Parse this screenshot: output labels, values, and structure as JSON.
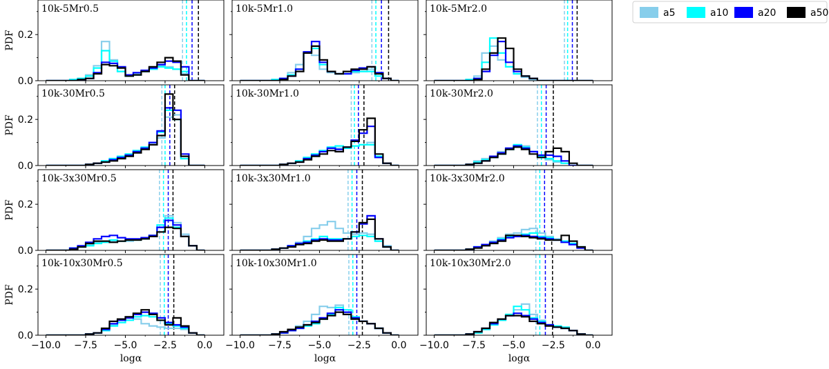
{
  "figure": {
    "x_axis_label": "logα",
    "y_axis_label": "PDF",
    "xlim": [
      -10.5,
      1.2
    ],
    "ylim": [
      0,
      0.35
    ],
    "x_ticks": [
      -10.0,
      -7.5,
      -5.0,
      -2.5,
      0.0
    ],
    "x_tick_labels": [
      "−10.0",
      "−7.5",
      "−5.0",
      "−2.5",
      "0.0"
    ],
    "y_ticks": [
      0.0,
      0.2
    ],
    "y_tick_labels": [
      "0.0",
      "0.2"
    ],
    "bin_edges": [
      -10.0,
      -9.5,
      -9.0,
      -8.5,
      -8.0,
      -7.5,
      -7.0,
      -6.5,
      -6.0,
      -5.5,
      -5.0,
      -4.5,
      -4.0,
      -3.5,
      -3.0,
      -2.5,
      -2.0,
      -1.5,
      -1.0,
      -0.5,
      0.0
    ]
  },
  "legend": {
    "position": "top-right",
    "items": [
      {
        "key": "a5",
        "label": "a5",
        "color": "#87CEEB"
      },
      {
        "key": "a10",
        "label": "a10",
        "color": "#00FFFF"
      },
      {
        "key": "a20",
        "label": "a20",
        "color": "#0000FF"
      },
      {
        "key": "a50",
        "label": "a50",
        "color": "#000000"
      }
    ]
  },
  "chart_data": [
    {
      "type": "histogram",
      "title": "10k-5Mr0.5",
      "medians": {
        "a5": -1.4,
        "a10": -1.15,
        "a20": -0.8,
        "a50": -0.4
      },
      "series": {
        "a5": [
          0,
          0,
          0,
          0.005,
          0.01,
          0.025,
          0.065,
          0.17,
          0.09,
          0.04,
          0.02,
          0.03,
          0.04,
          0.05,
          0.065,
          0.06,
          0.05,
          0.03,
          0,
          0
        ],
        "a10": [
          0,
          0,
          0,
          0.005,
          0.01,
          0.02,
          0.055,
          0.13,
          0.085,
          0.04,
          0.02,
          0.025,
          0.04,
          0.05,
          0.06,
          0.055,
          0.05,
          0.04,
          0,
          0
        ],
        "a20": [
          0,
          0,
          0,
          0,
          0.005,
          0.01,
          0.035,
          0.08,
          0.075,
          0.06,
          0.025,
          0.035,
          0.045,
          0.055,
          0.07,
          0.085,
          0.08,
          0.06,
          0,
          0
        ],
        "a50": [
          0,
          0,
          0,
          0,
          0.005,
          0.01,
          0.03,
          0.07,
          0.065,
          0.055,
          0.02,
          0.025,
          0.04,
          0.06,
          0.08,
          0.1,
          0.085,
          0.025,
          0,
          0
        ]
      }
    },
    {
      "type": "histogram",
      "title": "10k-5Mr1.0",
      "medians": {
        "a5": -1.7,
        "a10": -1.45,
        "a20": -1.1,
        "a50": -0.65
      },
      "series": {
        "a5": [
          0,
          0,
          0,
          0,
          0.005,
          0.01,
          0.035,
          0.07,
          0.125,
          0.11,
          0.05,
          0.035,
          0.03,
          0.03,
          0.035,
          0.04,
          0.05,
          0.03,
          0.01,
          0
        ],
        "a10": [
          0,
          0,
          0,
          0,
          0.005,
          0.01,
          0.025,
          0.05,
          0.12,
          0.14,
          0.07,
          0.04,
          0.03,
          0.03,
          0.04,
          0.04,
          0.04,
          0.02,
          0.01,
          0
        ],
        "a20": [
          0,
          0,
          0,
          0,
          0,
          0.01,
          0.02,
          0.05,
          0.125,
          0.17,
          0.08,
          0.04,
          0.03,
          0.03,
          0.045,
          0.055,
          0.06,
          0.035,
          0.01,
          0
        ],
        "a50": [
          0,
          0,
          0,
          0,
          0,
          0.005,
          0.02,
          0.04,
          0.12,
          0.15,
          0.09,
          0.04,
          0.03,
          0.04,
          0.05,
          0.05,
          0.06,
          0.03,
          0.01,
          0
        ]
      }
    },
    {
      "type": "histogram",
      "title": "10k-5Mr2.0",
      "medians": {
        "a5": -1.8,
        "a10": -1.6,
        "a20": -1.3,
        "a50": -1.0
      },
      "series": {
        "a5": [
          0,
          0,
          0,
          0,
          0.005,
          0.02,
          0.12,
          0.15,
          0.09,
          0.06,
          0.03,
          0.015,
          0.005,
          0,
          0,
          0,
          0,
          0,
          0,
          0
        ],
        "a10": [
          0,
          0,
          0,
          0,
          0.005,
          0.01,
          0.08,
          0.185,
          0.12,
          0.06,
          0.03,
          0.02,
          0.01,
          0,
          0,
          0,
          0,
          0,
          0,
          0
        ],
        "a20": [
          0,
          0,
          0,
          0,
          0,
          0.01,
          0.04,
          0.11,
          0.17,
          0.08,
          0.04,
          0.02,
          0.01,
          0,
          0,
          0,
          0,
          0,
          0,
          0
        ],
        "a50": [
          0,
          0,
          0,
          0,
          0,
          0.005,
          0.05,
          0.12,
          0.185,
          0.14,
          0.05,
          0.02,
          0.01,
          0,
          0,
          0,
          0,
          0,
          0,
          0
        ]
      }
    },
    {
      "type": "histogram",
      "title": "10k-30Mr0.5",
      "medians": {
        "a5": -2.7,
        "a10": -2.5,
        "a20": -2.2,
        "a50": -1.9
      },
      "series": {
        "a5": [
          0,
          0,
          0,
          0,
          0,
          0.005,
          0.01,
          0.02,
          0.03,
          0.04,
          0.05,
          0.065,
          0.075,
          0.09,
          0.12,
          0.21,
          0.22,
          0.03,
          0,
          0
        ],
        "a10": [
          0,
          0,
          0,
          0,
          0,
          0.005,
          0.01,
          0.02,
          0.03,
          0.04,
          0.05,
          0.065,
          0.08,
          0.1,
          0.145,
          0.24,
          0.2,
          0.03,
          0,
          0
        ],
        "a20": [
          0,
          0,
          0,
          0,
          0,
          0.005,
          0.01,
          0.015,
          0.025,
          0.035,
          0.045,
          0.06,
          0.075,
          0.1,
          0.15,
          0.25,
          0.24,
          0.05,
          0,
          0
        ],
        "a50": [
          0,
          0,
          0,
          0,
          0,
          0.005,
          0.01,
          0.015,
          0.02,
          0.03,
          0.04,
          0.055,
          0.07,
          0.09,
          0.13,
          0.31,
          0.2,
          0.04,
          0,
          0
        ]
      }
    },
    {
      "type": "histogram",
      "title": "10k-30Mr1.0",
      "medians": {
        "a5": -3.0,
        "a10": -2.8,
        "a20": -2.55,
        "a50": -2.2
      },
      "series": {
        "a5": [
          0,
          0,
          0,
          0,
          0,
          0.005,
          0.01,
          0.02,
          0.035,
          0.05,
          0.065,
          0.08,
          0.075,
          0.08,
          0.085,
          0.09,
          0.1,
          0.04,
          0.01,
          0
        ],
        "a10": [
          0,
          0,
          0,
          0,
          0,
          0.005,
          0.01,
          0.02,
          0.035,
          0.05,
          0.065,
          0.08,
          0.085,
          0.075,
          0.085,
          0.09,
          0.09,
          0.04,
          0.01,
          0
        ],
        "a20": [
          0,
          0,
          0,
          0,
          0,
          0.005,
          0.01,
          0.015,
          0.03,
          0.045,
          0.06,
          0.075,
          0.07,
          0.08,
          0.11,
          0.14,
          0.17,
          0.035,
          0.01,
          0
        ],
        "a50": [
          0,
          0,
          0,
          0,
          0,
          0.005,
          0.01,
          0.015,
          0.025,
          0.04,
          0.05,
          0.065,
          0.06,
          0.08,
          0.105,
          0.155,
          0.205,
          0.05,
          0.01,
          0
        ]
      }
    },
    {
      "type": "histogram",
      "title": "10k-30Mr2.0",
      "medians": {
        "a5": -3.5,
        "a10": -3.25,
        "a20": -2.95,
        "a50": -2.5
      },
      "series": {
        "a5": [
          0,
          0,
          0,
          0,
          0.005,
          0.02,
          0.03,
          0.04,
          0.06,
          0.075,
          0.085,
          0.085,
          0.06,
          0.04,
          0.025,
          0.015,
          0.01,
          0,
          0,
          0
        ],
        "a10": [
          0,
          0,
          0,
          0,
          0.005,
          0.015,
          0.025,
          0.035,
          0.05,
          0.07,
          0.09,
          0.08,
          0.06,
          0.04,
          0.03,
          0.02,
          0.01,
          0,
          0,
          0
        ],
        "a20": [
          0,
          0,
          0,
          0,
          0.005,
          0.01,
          0.02,
          0.04,
          0.055,
          0.075,
          0.085,
          0.075,
          0.06,
          0.045,
          0.045,
          0.04,
          0.02,
          0,
          0,
          0
        ],
        "a50": [
          0,
          0,
          0,
          0,
          0.005,
          0.01,
          0.02,
          0.035,
          0.05,
          0.07,
          0.08,
          0.07,
          0.05,
          0.035,
          0.06,
          0.075,
          0.06,
          0.01,
          0,
          0
        ]
      }
    },
    {
      "type": "histogram",
      "title": "10k-3x30Mr0.5",
      "medians": {
        "a5": -2.85,
        "a10": -2.6,
        "a20": -2.3,
        "a50": -2.0
      },
      "series": {
        "a5": [
          0,
          0,
          0,
          0.01,
          0.015,
          0.025,
          0.035,
          0.04,
          0.04,
          0.04,
          0.04,
          0.045,
          0.05,
          0.06,
          0.1,
          0.15,
          0.12,
          0.07,
          0.02,
          0
        ],
        "a10": [
          0,
          0,
          0,
          0.01,
          0.015,
          0.02,
          0.03,
          0.035,
          0.045,
          0.04,
          0.045,
          0.045,
          0.05,
          0.065,
          0.11,
          0.14,
          0.1,
          0.06,
          0.02,
          0
        ],
        "a20": [
          0,
          0,
          0,
          0.01,
          0.02,
          0.035,
          0.05,
          0.06,
          0.065,
          0.055,
          0.05,
          0.05,
          0.055,
          0.065,
          0.1,
          0.13,
          0.11,
          0.06,
          0.02,
          0
        ],
        "a50": [
          0,
          0,
          0,
          0.005,
          0.015,
          0.03,
          0.04,
          0.04,
          0.035,
          0.04,
          0.045,
          0.045,
          0.05,
          0.06,
          0.08,
          0.1,
          0.095,
          0.06,
          0.02,
          0
        ]
      }
    },
    {
      "type": "histogram",
      "title": "10k-3x30Mr1.0",
      "medians": {
        "a5": -3.2,
        "a10": -2.95,
        "a20": -2.65,
        "a50": -2.3
      },
      "series": {
        "a5": [
          0,
          0,
          0,
          0,
          0.005,
          0.01,
          0.02,
          0.035,
          0.06,
          0.095,
          0.11,
          0.125,
          0.095,
          0.075,
          0.07,
          0.075,
          0.07,
          0.04,
          0.02,
          0
        ],
        "a10": [
          0,
          0,
          0,
          0,
          0.005,
          0.01,
          0.02,
          0.03,
          0.04,
          0.05,
          0.06,
          0.05,
          0.05,
          0.05,
          0.06,
          0.065,
          0.06,
          0.04,
          0.015,
          0
        ],
        "a20": [
          0,
          0,
          0,
          0,
          0.005,
          0.01,
          0.02,
          0.03,
          0.035,
          0.045,
          0.05,
          0.045,
          0.045,
          0.05,
          0.08,
          0.115,
          0.15,
          0.05,
          0.015,
          0
        ],
        "a50": [
          0,
          0,
          0,
          0,
          0.005,
          0.01,
          0.015,
          0.025,
          0.03,
          0.04,
          0.045,
          0.04,
          0.04,
          0.05,
          0.08,
          0.12,
          0.135,
          0.05,
          0.015,
          0
        ]
      }
    },
    {
      "type": "histogram",
      "title": "10k-3x30Mr2.0",
      "medians": {
        "a5": -3.6,
        "a10": -3.35,
        "a20": -3.05,
        "a50": -2.6
      },
      "series": {
        "a5": [
          0,
          0,
          0,
          0,
          0.005,
          0.015,
          0.025,
          0.04,
          0.055,
          0.07,
          0.075,
          0.09,
          0.095,
          0.075,
          0.06,
          0.05,
          0.04,
          0.03,
          0.015,
          0
        ],
        "a10": [
          0,
          0,
          0,
          0,
          0.005,
          0.015,
          0.025,
          0.035,
          0.05,
          0.06,
          0.065,
          0.07,
          0.075,
          0.06,
          0.055,
          0.045,
          0.04,
          0.03,
          0.015,
          0
        ],
        "a20": [
          0,
          0,
          0,
          0,
          0.005,
          0.015,
          0.025,
          0.035,
          0.045,
          0.055,
          0.06,
          0.065,
          0.06,
          0.055,
          0.05,
          0.045,
          0.035,
          0.025,
          0.01,
          0
        ],
        "a50": [
          0,
          0,
          0,
          0,
          0.005,
          0.01,
          0.02,
          0.03,
          0.04,
          0.065,
          0.065,
          0.06,
          0.055,
          0.05,
          0.045,
          0.045,
          0.065,
          0.04,
          0.015,
          0
        ]
      }
    },
    {
      "type": "histogram",
      "title": "10k-10x30Mr0.5",
      "medians": {
        "a5": -2.8,
        "a10": -2.55,
        "a20": -2.3,
        "a50": -1.95
      },
      "series": {
        "a5": [
          0,
          0,
          0,
          0,
          0,
          0.005,
          0.01,
          0.02,
          0.045,
          0.065,
          0.08,
          0.07,
          0.05,
          0.04,
          0.035,
          0.03,
          0.03,
          0.025,
          0.01,
          0
        ],
        "a10": [
          0,
          0,
          0,
          0,
          0,
          0.005,
          0.01,
          0.02,
          0.04,
          0.055,
          0.065,
          0.08,
          0.085,
          0.08,
          0.065,
          0.05,
          0.04,
          0.03,
          0.01,
          0
        ],
        "a20": [
          0,
          0,
          0,
          0,
          0,
          0.005,
          0.01,
          0.025,
          0.05,
          0.065,
          0.075,
          0.09,
          0.1,
          0.095,
          0.075,
          0.055,
          0.045,
          0.035,
          0.01,
          0
        ],
        "a50": [
          0,
          0,
          0,
          0,
          0,
          0.005,
          0.01,
          0.03,
          0.06,
          0.07,
          0.08,
          0.095,
          0.11,
          0.09,
          0.065,
          0.045,
          0.075,
          0.04,
          0.01,
          0
        ]
      }
    },
    {
      "type": "histogram",
      "title": "10k-10x30Mr1.0",
      "medians": {
        "a5": -3.15,
        "a10": -2.9,
        "a20": -2.65,
        "a50": -2.3
      },
      "series": {
        "a5": [
          0,
          0,
          0,
          0,
          0.005,
          0.01,
          0.02,
          0.04,
          0.06,
          0.09,
          0.125,
          0.12,
          0.13,
          0.1,
          0.075,
          0.06,
          0.05,
          0.03,
          0.01,
          0
        ],
        "a10": [
          0,
          0,
          0,
          0,
          0.005,
          0.01,
          0.02,
          0.03,
          0.04,
          0.05,
          0.07,
          0.09,
          0.12,
          0.11,
          0.08,
          0.06,
          0.05,
          0.03,
          0.01,
          0
        ],
        "a20": [
          0,
          0,
          0,
          0,
          0.005,
          0.01,
          0.02,
          0.03,
          0.045,
          0.06,
          0.075,
          0.095,
          0.11,
          0.1,
          0.075,
          0.06,
          0.05,
          0.03,
          0.01,
          0
        ],
        "a50": [
          0,
          0,
          0,
          0,
          0.005,
          0.015,
          0.025,
          0.035,
          0.045,
          0.055,
          0.07,
          0.085,
          0.1,
          0.09,
          0.07,
          0.06,
          0.05,
          0.03,
          0.01,
          0
        ]
      }
    },
    {
      "type": "histogram",
      "title": "10k-10x30Mr2.0",
      "medians": {
        "a5": -3.6,
        "a10": -3.35,
        "a20": -3.0,
        "a50": -2.55
      },
      "series": {
        "a5": [
          0,
          0,
          0,
          0,
          0.005,
          0.01,
          0.025,
          0.045,
          0.065,
          0.085,
          0.11,
          0.135,
          0.09,
          0.065,
          0.045,
          0.035,
          0.03,
          0.02,
          0.005,
          0
        ],
        "a10": [
          0,
          0,
          0,
          0,
          0.005,
          0.01,
          0.025,
          0.045,
          0.065,
          0.09,
          0.125,
          0.11,
          0.075,
          0.06,
          0.045,
          0.04,
          0.035,
          0.02,
          0.005,
          0
        ],
        "a20": [
          0,
          0,
          0,
          0,
          0.005,
          0.015,
          0.03,
          0.05,
          0.07,
          0.085,
          0.095,
          0.085,
          0.07,
          0.055,
          0.045,
          0.035,
          0.03,
          0.02,
          0.005,
          0
        ],
        "a50": [
          0,
          0,
          0,
          0,
          0.005,
          0.015,
          0.03,
          0.055,
          0.07,
          0.085,
          0.085,
          0.08,
          0.06,
          0.05,
          0.04,
          0.035,
          0.03,
          0.02,
          0.005,
          0
        ]
      }
    }
  ]
}
